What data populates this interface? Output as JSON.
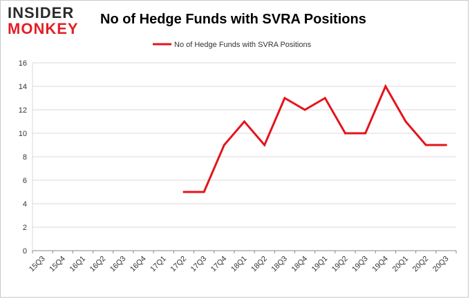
{
  "logo": {
    "line1": "INSIDER",
    "line2": "MONKEY"
  },
  "colors": {
    "series": "#e5131b",
    "grid": "#d9d9d9",
    "axis": "#888888",
    "logo_red": "#e21f26"
  },
  "chart_data": {
    "type": "line",
    "title": "No of Hedge Funds with SVRA Positions",
    "xlabel": "",
    "ylabel": "",
    "ylim": [
      0,
      16
    ],
    "yticks": [
      0,
      2,
      4,
      6,
      8,
      10,
      12,
      14,
      16
    ],
    "grid": true,
    "legend": "top-center",
    "categories": [
      "15Q3",
      "15Q4",
      "16Q1",
      "16Q2",
      "16Q3",
      "16Q4",
      "17Q1",
      "17Q2",
      "17Q3",
      "17Q4",
      "18Q1",
      "18Q2",
      "18Q3",
      "18Q4",
      "19Q1",
      "19Q2",
      "19Q3",
      "19Q4",
      "20Q1",
      "20Q2",
      "20Q3"
    ],
    "series": [
      {
        "name": "No of Hedge Funds with SVRA Positions",
        "values": [
          null,
          null,
          null,
          null,
          null,
          null,
          null,
          5,
          5,
          9,
          11,
          9,
          13,
          12,
          13,
          10,
          10,
          14,
          11,
          9,
          9
        ]
      }
    ]
  }
}
